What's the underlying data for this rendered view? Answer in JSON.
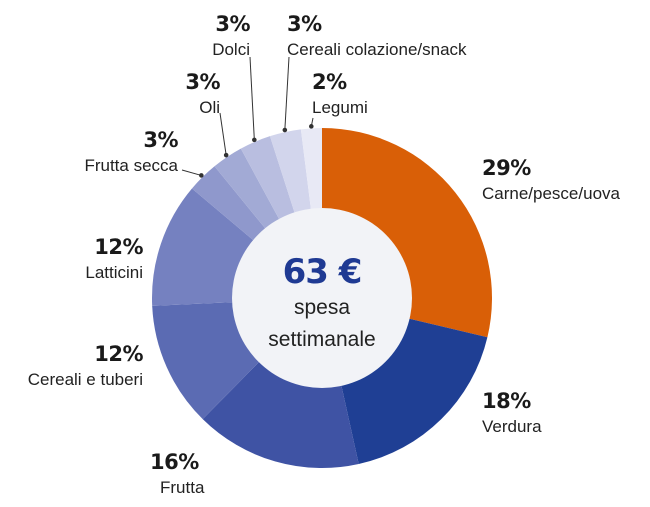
{
  "chart_data": {
    "type": "pie",
    "variant": "donut",
    "title": "",
    "center_label": {
      "value": "63 €",
      "line1": "spesa",
      "line2": "settimanale"
    },
    "start_angle_deg": 0,
    "direction": "clockwise",
    "categories": [
      "Carne/pesce/uova",
      "Verdura",
      "Frutta",
      "Cereali e tuberi",
      "Latticini",
      "Frutta secca",
      "Oli",
      "Dolci",
      "Cereali colazione/snack",
      "Legumi"
    ],
    "values": [
      29,
      18,
      16,
      12,
      12,
      3,
      3,
      3,
      3,
      2
    ],
    "colors": [
      "#d95f07",
      "#1f3f94",
      "#3f53a4",
      "#5b6bb3",
      "#7581c0",
      "#8f98cc",
      "#a2aad5",
      "#b9bee0",
      "#d2d5ec",
      "#e8e9f5"
    ],
    "labels": [
      {
        "pct": "29%",
        "name": "Carne/pesce/uova"
      },
      {
        "pct": "18%",
        "name": "Verdura"
      },
      {
        "pct": "16%",
        "name": "Frutta"
      },
      {
        "pct": "12%",
        "name": "Cereali e tuberi"
      },
      {
        "pct": "12%",
        "name": "Latticini"
      },
      {
        "pct": "3%",
        "name": "Frutta secca"
      },
      {
        "pct": "3%",
        "name": "Oli"
      },
      {
        "pct": "3%",
        "name": "Dolci"
      },
      {
        "pct": "3%",
        "name": "Cereali colazione/snack"
      },
      {
        "pct": "2%",
        "name": "Legumi"
      }
    ],
    "legend": "none",
    "grid": false
  },
  "center": {
    "bg": "#f2f3f7"
  }
}
